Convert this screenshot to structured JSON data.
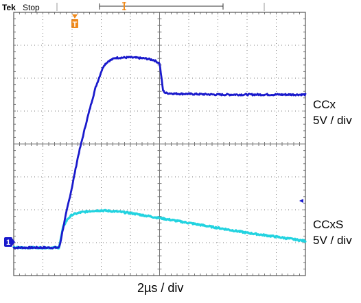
{
  "header": {
    "brand": "Tek",
    "run_state": "Stop",
    "trigger_marker": "T"
  },
  "channel_marker": "1",
  "colors": {
    "ccx": "#1a1acc",
    "ccxs": "#22d3e0",
    "trigger": "#f08a1c",
    "grid": "#777777",
    "frame": "#555555"
  },
  "labels": {
    "ccx_name": "CCx",
    "ccx_scale": "5V / div",
    "ccxs_name": "CCxS",
    "ccxs_scale": "5V / div",
    "time_scale": "2µs / div"
  },
  "chart_data": {
    "type": "line",
    "grid": true,
    "x_divisions": 10,
    "y_divisions": 8,
    "xlim": [
      0,
      10
    ],
    "ylim": [
      0,
      8
    ],
    "series": [
      {
        "name": "CCx",
        "x": [
          0,
          1.55,
          1.6,
          1.65,
          1.8,
          2.0,
          2.2,
          2.5,
          2.8,
          3.0,
          3.1,
          3.25,
          3.5,
          4.0,
          4.5,
          4.8,
          5.0,
          5.06,
          5.12,
          5.2,
          5.5,
          6.0,
          7.0,
          8.0,
          9.0,
          10.0
        ],
        "y": [
          0.85,
          0.85,
          1.0,
          1.25,
          1.9,
          2.7,
          3.6,
          4.7,
          5.7,
          6.2,
          6.4,
          6.52,
          6.62,
          6.63,
          6.6,
          6.55,
          6.45,
          6.05,
          5.62,
          5.55,
          5.53,
          5.52,
          5.5,
          5.5,
          5.5,
          5.5
        ]
      },
      {
        "name": "CCxS",
        "x": [
          0,
          1.55,
          1.6,
          1.7,
          1.85,
          2.0,
          2.3,
          2.7,
          3.0,
          3.5,
          4.0,
          5.0,
          6.0,
          7.0,
          8.0,
          9.0,
          10.0
        ],
        "y": [
          0.85,
          0.85,
          1.05,
          1.5,
          1.72,
          1.85,
          1.92,
          1.97,
          1.98,
          1.95,
          1.9,
          1.75,
          1.6,
          1.45,
          1.3,
          1.18,
          1.05
        ]
      }
    ]
  }
}
